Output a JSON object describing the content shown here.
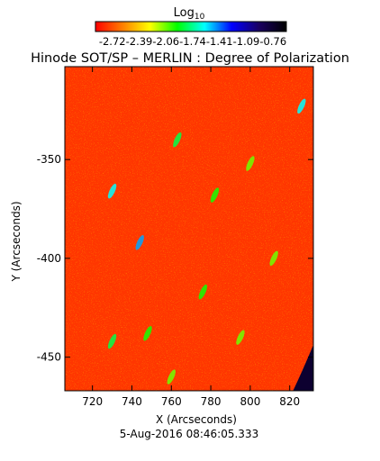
{
  "chart_data": {
    "type": "heatmap",
    "title": "Hinode SOT/SP – MERLIN : Degree of Polarization",
    "subtitle": "5-Aug-2016 08:46:05.333",
    "xlabel": "X (Arcseconds)",
    "ylabel": "Y (Arcseconds)",
    "xlim": [
      706,
      832
    ],
    "ylim": [
      -467,
      -303
    ],
    "x_ticks": [
      720,
      740,
      760,
      780,
      800,
      820
    ],
    "x_tick_labels": [
      "720",
      "740",
      "760",
      "780",
      "800",
      "820"
    ],
    "y_ticks": [
      -350,
      -400,
      -450
    ],
    "y_tick_labels": [
      "-350",
      "-400",
      "-450"
    ],
    "colorbar": {
      "label_main": "Log",
      "label_sub": "10",
      "range": [
        -2.72,
        -0.76
      ],
      "tick_text": "-2.72-2.39-2.06-1.74-1.41-1.09-0.76",
      "colormap": [
        "#ff0000",
        "#ff7f00",
        "#ffff00",
        "#00ff00",
        "#00ffff",
        "#0000ff",
        "#1a0060",
        "#000000"
      ]
    },
    "dominant_value": -2.6,
    "features": [
      {
        "x": 744,
        "y": -392,
        "value": -1.5
      },
      {
        "x": 730,
        "y": -366,
        "value": -1.6
      },
      {
        "x": 826,
        "y": -323,
        "value": -1.6
      },
      {
        "x": 763,
        "y": -340,
        "value": -1.8
      },
      {
        "x": 782,
        "y": -368,
        "value": -1.9
      },
      {
        "x": 776,
        "y": -417,
        "value": -1.9
      },
      {
        "x": 730,
        "y": -442,
        "value": -1.8
      },
      {
        "x": 812,
        "y": -400,
        "value": -2.0
      },
      {
        "x": 748,
        "y": -438,
        "value": -1.9
      },
      {
        "x": 795,
        "y": -440,
        "value": -2.0
      },
      {
        "x": 760,
        "y": -460,
        "value": -2.0
      },
      {
        "x": 800,
        "y": -352,
        "value": -2.0
      }
    ],
    "corner_feature": {
      "x": 829,
      "y": -462,
      "value": -0.9
    }
  }
}
